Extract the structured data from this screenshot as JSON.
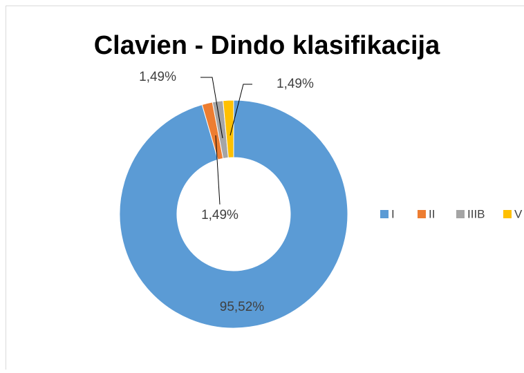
{
  "chart_data": {
    "type": "donut",
    "title": "Clavien - Dindo klasifikacija",
    "categories": [
      "I",
      "II",
      "IIIB",
      "V"
    ],
    "values": [
      95.52,
      1.49,
      1.49,
      1.49
    ],
    "value_labels": [
      "95,52%",
      "1,49%",
      "1,49%",
      "1,49%"
    ],
    "colors": [
      "#5b9bd5",
      "#ed7d31",
      "#a5a5a5",
      "#ffc000"
    ],
    "legend": "right"
  }
}
